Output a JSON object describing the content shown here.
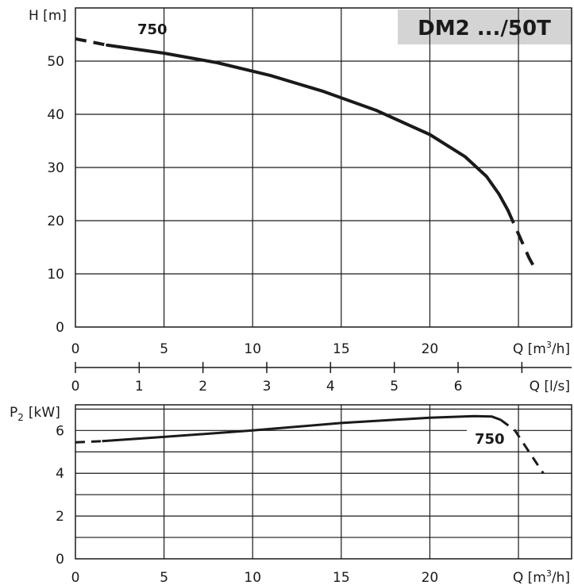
{
  "colors": {
    "background": "#ffffff",
    "grid": "#1a1a1a",
    "curve": "#1a1a1a",
    "title_box": "#d4d4d4"
  },
  "title": "DM2 .../50T",
  "chart_data": [
    {
      "id": "head",
      "type": "line",
      "ylabel": "H [m]",
      "xlabel": "Q [m³/h]",
      "xlabel_main": "Q [m",
      "xlabel_sup": "3",
      "xlabel_end": "/h]",
      "xlim": [
        0,
        28
      ],
      "ylim": [
        0,
        60
      ],
      "x_ticks": [
        0,
        5,
        10,
        15,
        20
      ],
      "y_ticks": [
        0,
        10,
        20,
        30,
        40,
        50
      ],
      "grid": true,
      "series": [
        {
          "name": "750",
          "solid": [
            [
              1.8,
              53.0
            ],
            [
              5,
              51.5
            ],
            [
              8,
              49.7
            ],
            [
              11,
              47.3
            ],
            [
              14,
              44.3
            ],
            [
              17,
              40.7
            ],
            [
              20,
              36.2
            ],
            [
              22,
              32.0
            ],
            [
              23.2,
              28.3
            ],
            [
              23.9,
              25.0
            ],
            [
              24.4,
              22.0
            ],
            [
              24.8,
              19.0
            ],
            [
              25.2,
              16.0
            ],
            [
              25.6,
              13.0
            ],
            [
              25.9,
              11.2
            ]
          ],
          "solid_end_index": 10,
          "solid_dashed": [
            [
              0,
              54.2
            ],
            [
              1.8,
              53.0
            ]
          ],
          "dashed_tail": [
            [
              24.4,
              22.0
            ],
            [
              24.8,
              19.0
            ],
            [
              25.2,
              16.0
            ],
            [
              25.6,
              13.0
            ],
            [
              25.9,
              11.2
            ]
          ]
        }
      ]
    },
    {
      "id": "secondary-flow-axis",
      "type": "axis",
      "xlabel": "Q [l/s]",
      "xlim": [
        0,
        7.78
      ],
      "ticks": [
        0,
        1,
        2,
        3,
        4,
        5,
        6,
        7
      ],
      "labels": [
        "0",
        "1",
        "2",
        "3",
        "4",
        "5",
        "6"
      ]
    },
    {
      "id": "power",
      "type": "line",
      "ylabel_main": "P",
      "ylabel_sub": "2",
      "ylabel_unit": "[kW]",
      "xlabel_main": "Q [m",
      "xlabel_sup": "3",
      "xlabel_end": "/h]",
      "xlim": [
        0,
        28
      ],
      "ylim": [
        0,
        7.2
      ],
      "x_ticks": [
        0,
        5,
        10,
        15,
        20
      ],
      "y_ticks": [
        0,
        2,
        4,
        6
      ],
      "grid": true,
      "series": [
        {
          "name": "750",
          "dashed_head": [
            [
              0,
              5.45
            ],
            [
              1.5,
              5.5
            ]
          ],
          "solid": [
            [
              1.5,
              5.5
            ],
            [
              5,
              5.7
            ],
            [
              10,
              6.0
            ],
            [
              15,
              6.35
            ],
            [
              20,
              6.6
            ],
            [
              22.5,
              6.67
            ],
            [
              23.5,
              6.65
            ],
            [
              24,
              6.5
            ]
          ],
          "dashed_tail": [
            [
              24,
              6.5
            ],
            [
              24.8,
              6.0
            ],
            [
              25.6,
              5.0
            ],
            [
              26.4,
              4.0
            ]
          ]
        }
      ]
    }
  ]
}
